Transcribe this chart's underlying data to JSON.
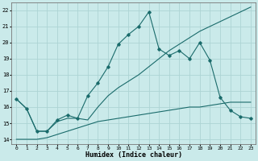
{
  "xlabel": "Humidex (Indice chaleur)",
  "ylabel": "",
  "background_color": "#caeaea",
  "grid_color": "#add4d4",
  "line_color": "#1a6b6b",
  "xlim": [
    -0.5,
    23.5
  ],
  "ylim": [
    13.7,
    22.5
  ],
  "yticks": [
    14,
    15,
    16,
    17,
    18,
    19,
    20,
    21,
    22
  ],
  "xticks": [
    0,
    1,
    2,
    3,
    4,
    5,
    6,
    7,
    8,
    9,
    10,
    11,
    12,
    13,
    14,
    15,
    16,
    17,
    18,
    19,
    20,
    21,
    22,
    23
  ],
  "line1_x": [
    0,
    1,
    2,
    3,
    4,
    5,
    6,
    7,
    8,
    9,
    10,
    11,
    12,
    13,
    14,
    15,
    16,
    17,
    18,
    19,
    20,
    21,
    22,
    23
  ],
  "line1_y": [
    16.5,
    15.9,
    14.5,
    14.5,
    15.1,
    15.3,
    15.3,
    15.2,
    16.0,
    16.7,
    17.2,
    17.6,
    18.0,
    18.5,
    19.0,
    19.5,
    19.9,
    20.3,
    20.7,
    21.0,
    21.3,
    21.6,
    21.9,
    22.2
  ],
  "line2_x": [
    0,
    1,
    2,
    3,
    4,
    5,
    6,
    7,
    8,
    9,
    10,
    11,
    12,
    13,
    14,
    15,
    16,
    17,
    18,
    19,
    20,
    21,
    22,
    23
  ],
  "line2_y": [
    14.0,
    14.0,
    14.0,
    14.1,
    14.3,
    14.5,
    14.7,
    14.9,
    15.1,
    15.2,
    15.3,
    15.4,
    15.5,
    15.6,
    15.7,
    15.8,
    15.9,
    16.0,
    16.0,
    16.1,
    16.2,
    16.3,
    16.3,
    16.3
  ],
  "line3_x": [
    0,
    1,
    2,
    3,
    4,
    5,
    6,
    7,
    8,
    9,
    10,
    11,
    12,
    13,
    14,
    15,
    16,
    17,
    18,
    19,
    20,
    21,
    22,
    23
  ],
  "line3_y": [
    16.5,
    15.9,
    14.5,
    14.5,
    15.2,
    15.5,
    15.3,
    16.7,
    17.5,
    18.5,
    19.9,
    20.5,
    21.0,
    21.9,
    19.6,
    19.2,
    19.5,
    19.0,
    20.0,
    18.9,
    16.6,
    15.8,
    15.4,
    15.3
  ]
}
